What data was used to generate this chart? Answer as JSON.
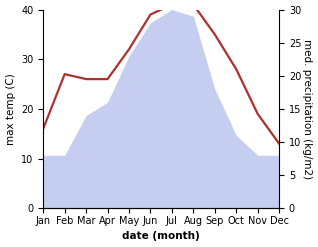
{
  "months": [
    "Jan",
    "Feb",
    "Mar",
    "Apr",
    "May",
    "Jun",
    "Jul",
    "Aug",
    "Sep",
    "Oct",
    "Nov",
    "Dec"
  ],
  "temperature": [
    16,
    27,
    26,
    26,
    32,
    39,
    41,
    41,
    35,
    28,
    19,
    13
  ],
  "precipitation": [
    8,
    8,
    14,
    16,
    23,
    28,
    30,
    29,
    18,
    11,
    8,
    8
  ],
  "temp_color": "#b03030",
  "precip_color": "#c5cdf0",
  "left_ylabel": "max temp (C)",
  "right_ylabel": "med. precipitation (kg/m2)",
  "xlabel": "date (month)",
  "left_ylim": [
    0,
    40
  ],
  "right_ylim": [
    0,
    30
  ],
  "left_yticks": [
    0,
    10,
    20,
    30,
    40
  ],
  "right_yticks": [
    0,
    5,
    10,
    15,
    20,
    25,
    30
  ],
  "background_color": "#ffffff",
  "temp_linewidth": 1.6,
  "label_fontsize": 7.5,
  "tick_fontsize": 7
}
